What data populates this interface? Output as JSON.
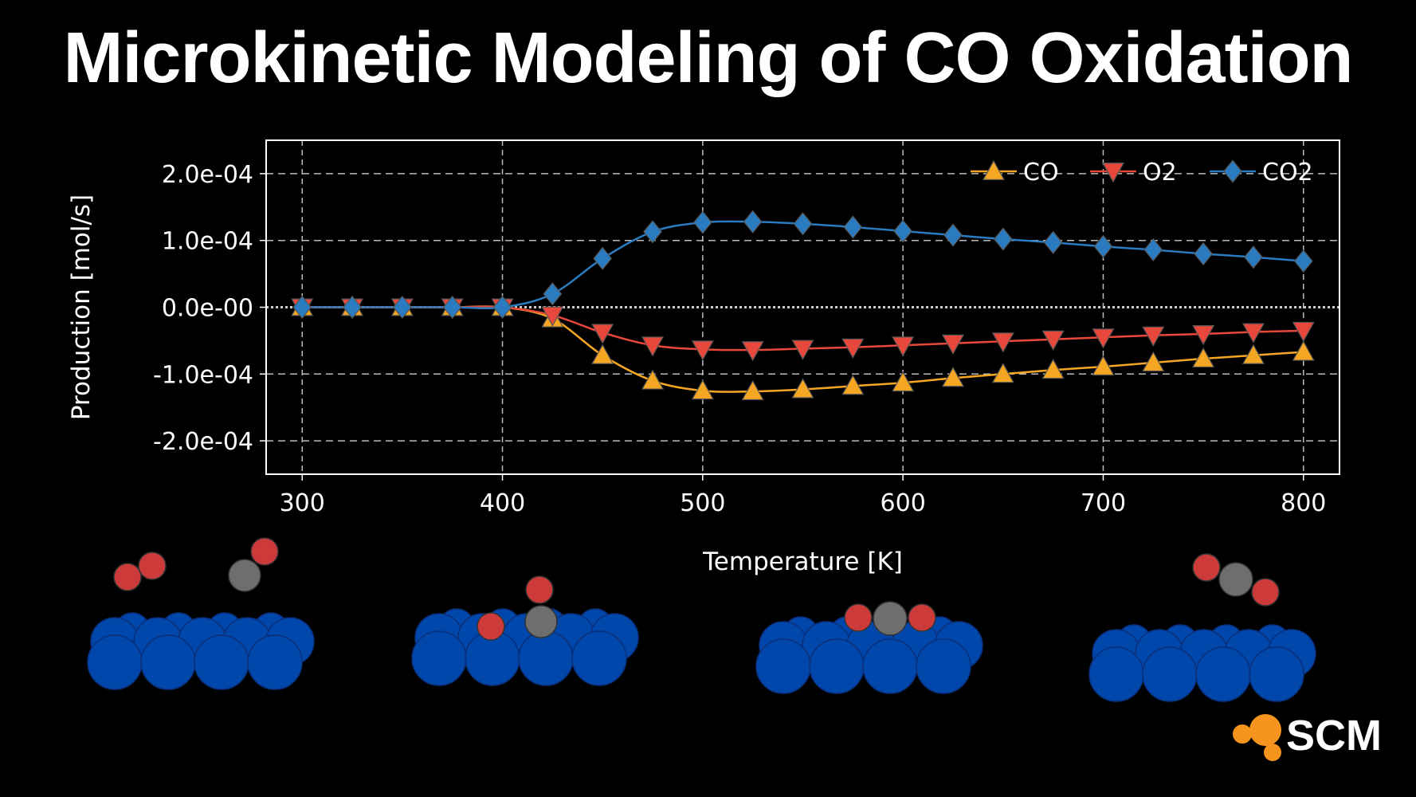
{
  "title": "Microkinetic Modeling of CO Oxidation",
  "logo": {
    "text": "SCM",
    "color": "#f7941d"
  },
  "chart_data": {
    "type": "line",
    "title": "",
    "xlabel": "Temperature [K]",
    "ylabel": "Production [mol/s]",
    "xlim": [
      282,
      818
    ],
    "ylim": [
      -0.00025,
      0.00025
    ],
    "xticks": [
      300,
      400,
      500,
      600,
      700,
      800
    ],
    "xtick_labels": [
      "300",
      "400",
      "500",
      "600",
      "700",
      "800"
    ],
    "yticks": [
      0.0002,
      0.0001,
      0,
      -0.0001,
      -0.0002
    ],
    "ytick_labels": [
      "2.0e-04",
      "1.0e-04",
      "0.0e-00",
      "-1.0e-04",
      "-2.0e-04"
    ],
    "grid": true,
    "legend_placement": "top-right",
    "x": [
      300,
      325,
      350,
      375,
      400,
      425,
      450,
      475,
      500,
      525,
      550,
      575,
      600,
      625,
      650,
      675,
      700,
      725,
      750,
      775,
      800
    ],
    "series": [
      {
        "name": "CO",
        "color": "#f5a623",
        "marker": "triangle-up",
        "values": [
          0,
          0,
          0,
          0,
          0,
          -1.7e-05,
          -7.2e-05,
          -0.00011,
          -0.000125,
          -0.000126,
          -0.000123,
          -0.000118,
          -0.000113,
          -0.000106,
          -0.0001,
          -9.4e-05,
          -8.9e-05,
          -8.3e-05,
          -7.7e-05,
          -7.2e-05,
          -6.7e-05
        ]
      },
      {
        "name": "O2",
        "color": "#e8483b",
        "marker": "triangle-down",
        "values": [
          0,
          0,
          0,
          0,
          0,
          -1.2e-05,
          -3.8e-05,
          -5.7e-05,
          -6.3e-05,
          -6.4e-05,
          -6.2e-05,
          -6e-05,
          -5.7e-05,
          -5.4e-05,
          -5.1e-05,
          -4.8e-05,
          -4.5e-05,
          -4.2e-05,
          -4e-05,
          -3.7e-05,
          -3.5e-05
        ]
      },
      {
        "name": "CO2",
        "color": "#2a7bbf",
        "marker": "diamond",
        "values": [
          0,
          0,
          0,
          0,
          0,
          2e-05,
          7.3e-05,
          0.000113,
          0.000127,
          0.000128,
          0.000125,
          0.00012,
          0.000114,
          0.000108,
          0.000102,
          9.7e-05,
          9.1e-05,
          8.6e-05,
          8e-05,
          7.5e-05,
          6.9e-05
        ]
      }
    ]
  },
  "illustration": {
    "surface_color": "#0047ab",
    "oxygen_color": "#cc3a3a",
    "carbon_color": "#6e6e6e"
  }
}
